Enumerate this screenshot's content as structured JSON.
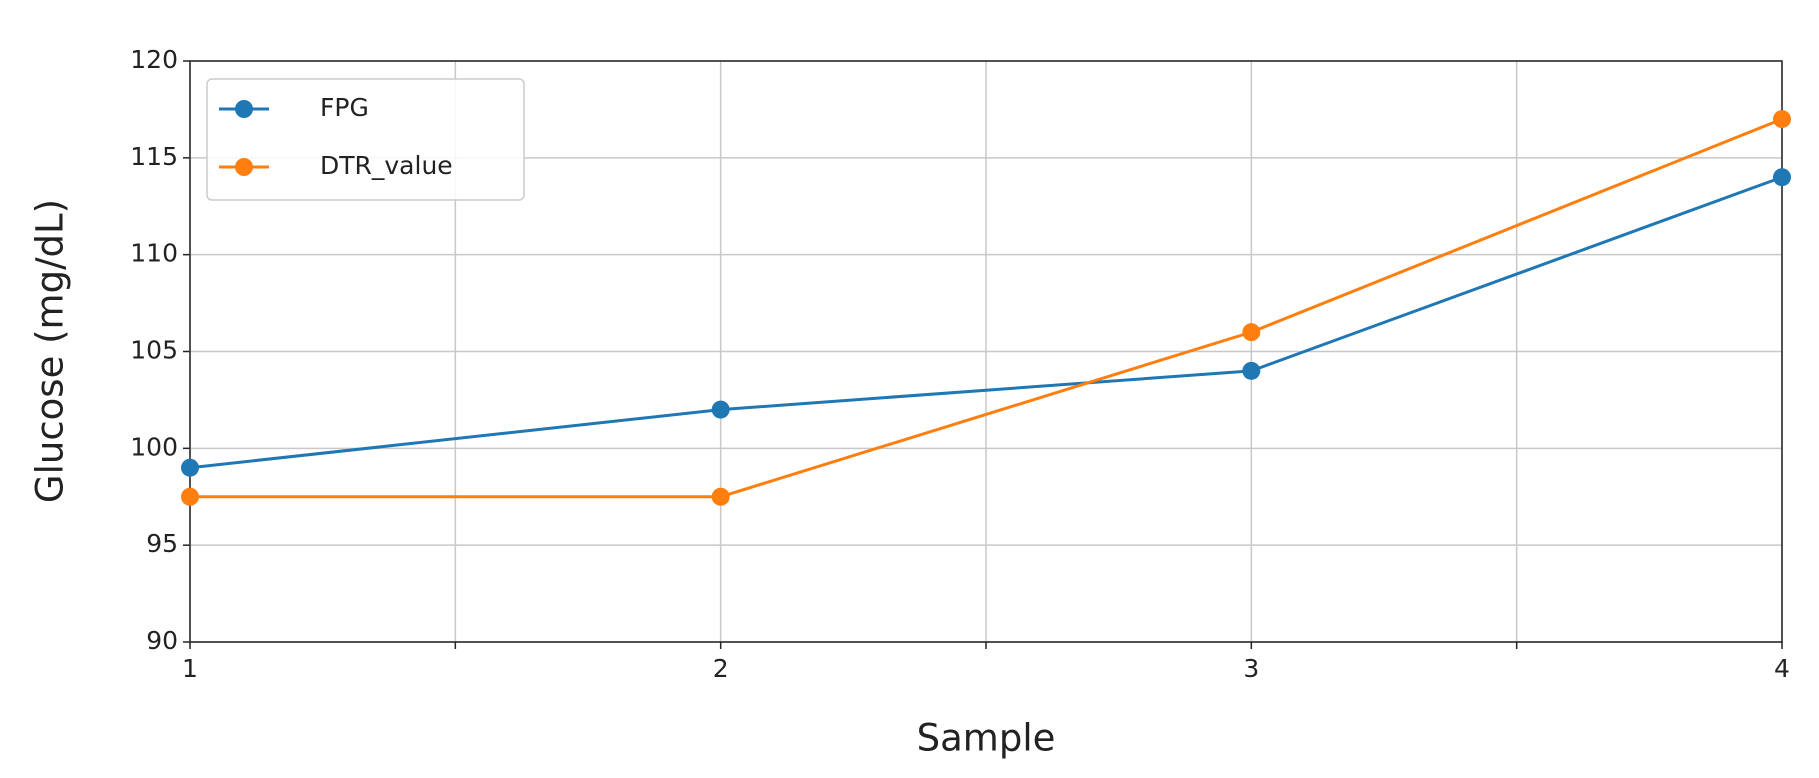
{
  "chart_data": {
    "type": "line",
    "x": [
      1,
      2,
      3,
      4
    ],
    "series": [
      {
        "name": "FPG",
        "color": "#1f77b4",
        "values": [
          99,
          102,
          104,
          114
        ]
      },
      {
        "name": "DTR_value",
        "color": "#ff7f0e",
        "values": [
          97.5,
          97.5,
          106,
          117
        ]
      }
    ],
    "xlabel": "Sample",
    "ylabel": "Glucose (mg/dL)",
    "xlim": [
      1,
      4
    ],
    "xticks": [
      1,
      2,
      3,
      4
    ],
    "xminor_ticks": [
      1.5,
      2.5,
      3.5
    ],
    "ylim": [
      90,
      120
    ],
    "yticks": [
      90,
      95,
      100,
      105,
      110,
      115,
      120
    ],
    "grid": true,
    "legend": "upper left"
  }
}
